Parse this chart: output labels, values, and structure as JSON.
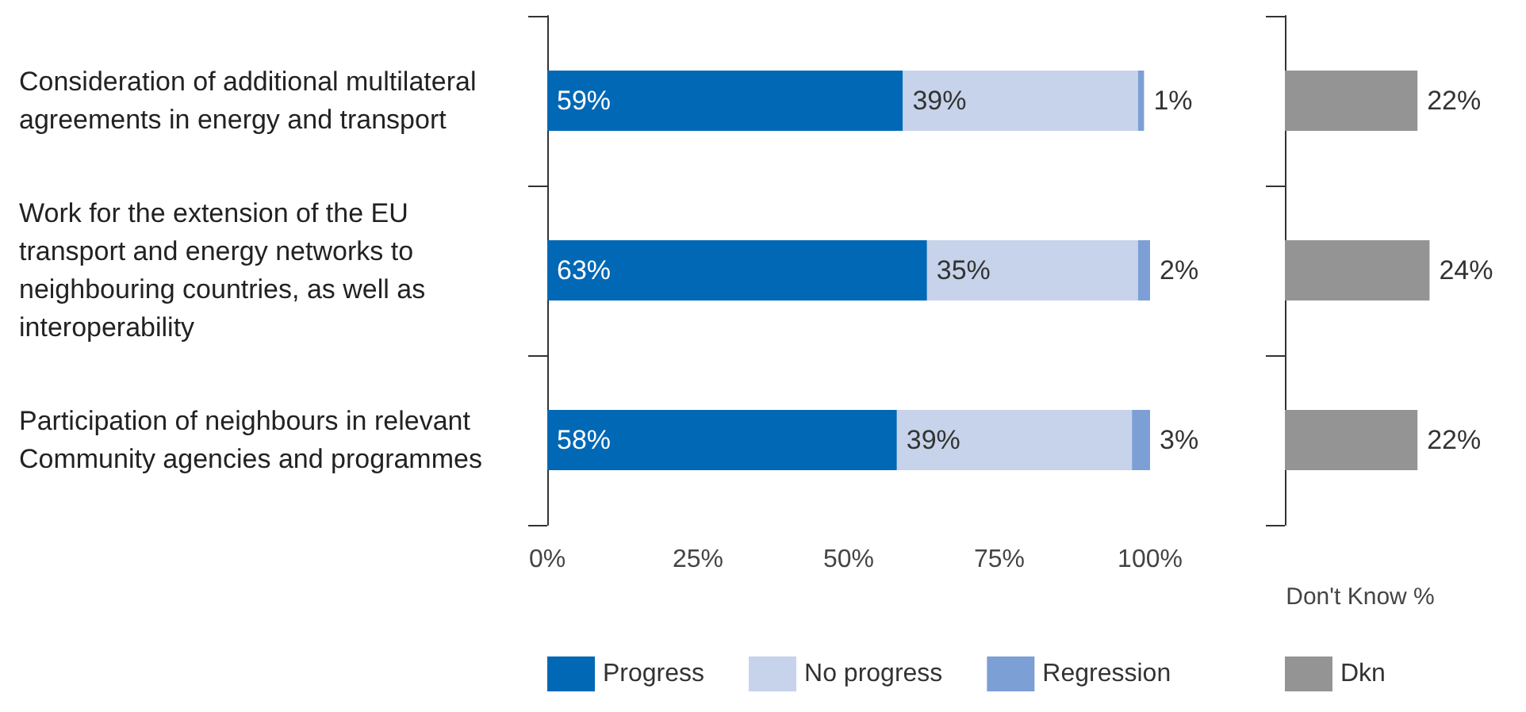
{
  "chart_data": [
    {
      "type": "bar",
      "orientation": "horizontal",
      "stacked": true,
      "categories": [
        "Consideration of additional multilateral agreements in energy and transport",
        "Work for the extension of the EU transport and energy networks to neighbouring countries, as well as interoperability",
        "Participation of neighbours in relevant Community agencies and programmes"
      ],
      "series": [
        {
          "name": "Progress",
          "color": "#0068b4",
          "values": [
            59,
            63,
            58
          ],
          "value_labels": [
            "59%",
            "63%",
            "58%"
          ]
        },
        {
          "name": "No progress",
          "color": "#c6d3ea",
          "values": [
            39,
            35,
            39
          ],
          "value_labels": [
            "39%",
            "35%",
            "39%"
          ]
        },
        {
          "name": "Regression",
          "color": "#7c9fd5",
          "values": [
            1,
            2,
            3
          ],
          "value_labels": [
            "1%",
            "2%",
            "3%"
          ]
        }
      ],
      "xlim": [
        0,
        100
      ],
      "xticks": [
        {
          "value": 0,
          "label": "0%"
        },
        {
          "value": 25,
          "label": "25%"
        },
        {
          "value": 50,
          "label": "50%"
        },
        {
          "value": 75,
          "label": "75%"
        },
        {
          "value": 100,
          "label": "100%"
        }
      ],
      "legend": "bottom"
    },
    {
      "type": "bar",
      "orientation": "horizontal",
      "categories": [
        null,
        null,
        null
      ],
      "series": [
        {
          "name": "Dkn",
          "color": "#949494",
          "values": [
            22,
            24,
            22
          ],
          "value_labels": [
            "22%",
            "24%",
            "22%"
          ]
        }
      ],
      "xlabel": "Don't Know %",
      "legend": "bottom"
    }
  ]
}
